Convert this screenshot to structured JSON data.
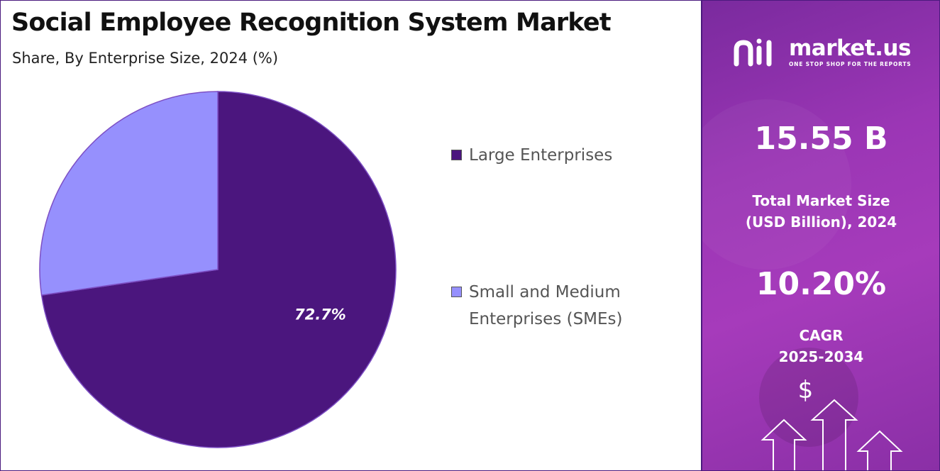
{
  "title": "Social Employee Recognition System Market",
  "subtitle": "Share, By Enterprise Size, 2024 (%)",
  "chart_data": {
    "type": "pie",
    "title": "Social Employee Recognition System Market",
    "subtitle": "Share, By Enterprise Size, 2024 (%)",
    "slices": [
      {
        "label": "Large Enterprises",
        "value": 72.7,
        "color": "#4b167e",
        "data_label": "72.7%"
      },
      {
        "label": "Small and Medium Enterprises (SMEs)",
        "value": 27.3,
        "color": "#9690fd",
        "data_label": ""
      }
    ],
    "legend_position": "right"
  },
  "legend": {
    "items": [
      {
        "label_line1": "Large Enterprises",
        "label_line2": "",
        "color": "#4b167e"
      },
      {
        "label_line1": "Small and Medium",
        "label_line2": "Enterprises (SMEs)",
        "color": "#9690fd"
      }
    ]
  },
  "sidebar": {
    "brand": "market.us",
    "tagline": "ONE STOP SHOP FOR THE REPORTS",
    "market_size_value": "15.55 B",
    "market_size_label_line1": "Total Market Size",
    "market_size_label_line2": "(USD Billion), 2024",
    "cagr_value": "10.20%",
    "cagr_label_line1": "CAGR",
    "cagr_label_line2": "2025-2034",
    "currency_symbol": "$"
  },
  "colors": {
    "accent_dark": "#4b167e",
    "accent_light": "#9690fd",
    "sidebar": "#9b36b5"
  }
}
